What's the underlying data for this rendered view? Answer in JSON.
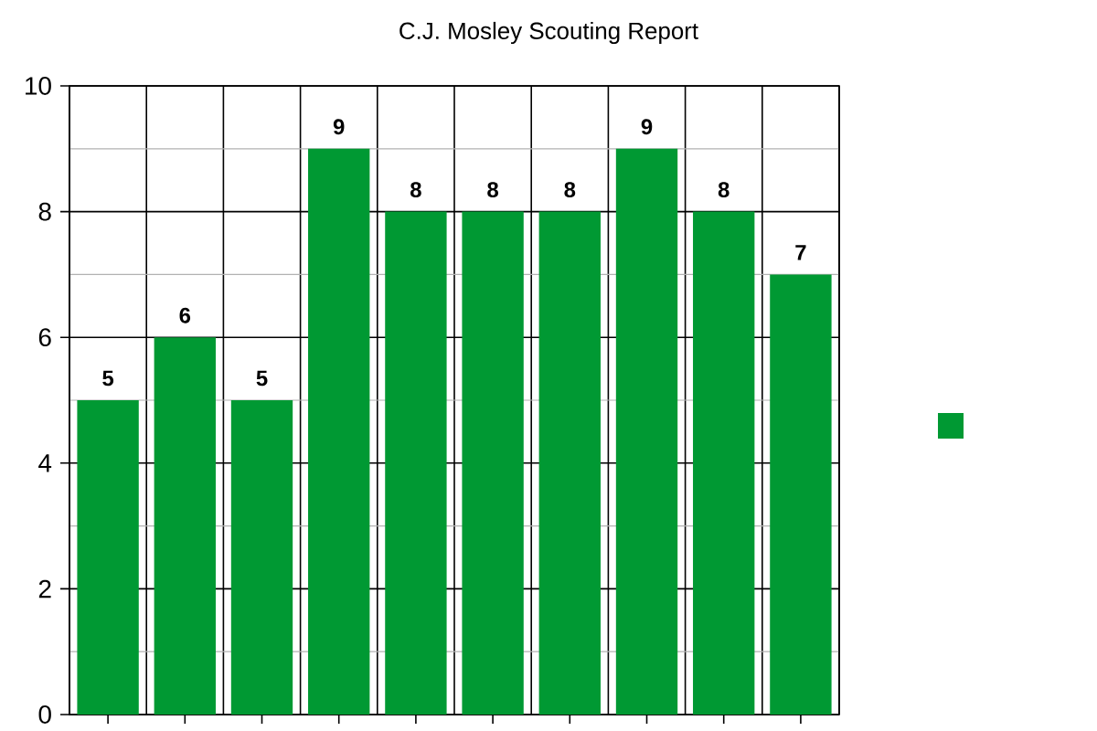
{
  "chart_data": {
    "type": "bar",
    "title": "C.J. Mosley Scouting Report",
    "categories": [
      null,
      null,
      null,
      null,
      null,
      null,
      null,
      null,
      null,
      null
    ],
    "values": [
      5,
      6,
      5,
      9,
      8,
      8,
      8,
      9,
      8,
      7
    ],
    "color": "#009933",
    "ylim": [
      0,
      10
    ],
    "yticks": [
      0,
      2,
      4,
      6,
      8,
      10
    ],
    "grid": true,
    "data_labels": true
  }
}
